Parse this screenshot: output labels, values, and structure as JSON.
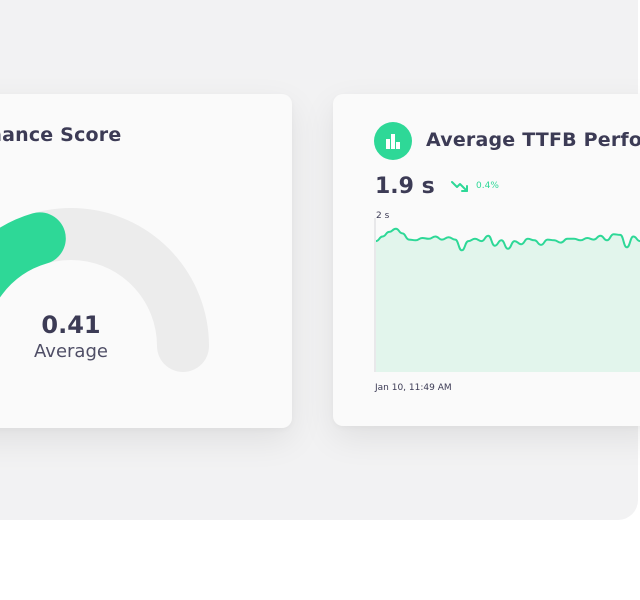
{
  "left_card": {
    "title_prefix": "Performanc",
    "title_visible": "e Score",
    "gauge_value": "0.41",
    "gauge_label": "Average",
    "gauge_fraction": 0.41
  },
  "right_card": {
    "title": "Average TTFB Performa",
    "metric_value": "1.9 s",
    "trend_percent": "0.4%",
    "icon": "bar-chart-icon"
  },
  "colors": {
    "accent": "#2ed897",
    "area_fill": "#e2f5ec",
    "text_dark": "#3c3b55",
    "gauge_track": "#ececec"
  },
  "chart_data": {
    "type": "area",
    "y_tick_labels": [
      "2 s"
    ],
    "x_tick_labels": [
      "Jan 10, 11:49 AM"
    ],
    "ylim": [
      0,
      2
    ],
    "series": [
      {
        "values": [
          1.7,
          1.76,
          1.82,
          1.86,
          1.8,
          1.72,
          1.71,
          1.74,
          1.73,
          1.76,
          1.72,
          1.75,
          1.72,
          1.58,
          1.7,
          1.73,
          1.7,
          1.77,
          1.64,
          1.71,
          1.6,
          1.7,
          1.66,
          1.73,
          1.71,
          1.65,
          1.72,
          1.71,
          1.68,
          1.73,
          1.73,
          1.71,
          1.74,
          1.72,
          1.77,
          1.71,
          1.79,
          1.78,
          1.62,
          1.76,
          1.7
        ]
      }
    ]
  }
}
